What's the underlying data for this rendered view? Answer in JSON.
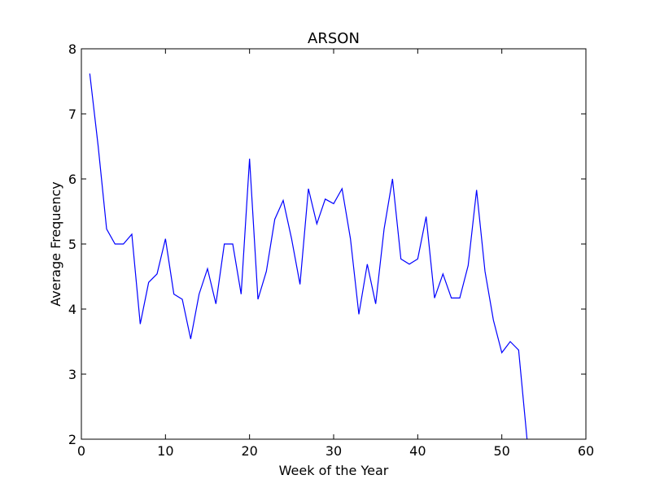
{
  "chart_data": {
    "type": "line",
    "title": "ARSON",
    "xlabel": "Week of the Year",
    "ylabel": "Average Frequency",
    "xlim": [
      0,
      60
    ],
    "ylim": [
      2,
      8
    ],
    "xticks": [
      0,
      10,
      20,
      30,
      40,
      50,
      60
    ],
    "yticks": [
      2,
      3,
      4,
      5,
      6,
      7,
      8
    ],
    "grid": false,
    "line_color": "#0000ff",
    "series": [
      {
        "x": [
          1,
          2,
          3,
          4,
          5,
          6,
          7,
          8,
          9,
          10,
          11,
          12,
          13,
          14,
          15,
          16,
          17,
          18,
          19,
          20,
          21,
          22,
          23,
          24,
          25,
          26,
          27,
          28,
          29,
          30,
          31,
          32,
          33,
          34,
          35,
          36,
          37,
          38,
          39,
          40,
          41,
          42,
          43,
          44,
          45,
          46,
          47,
          48,
          49,
          50,
          51,
          52,
          53
        ],
        "y": [
          7.62,
          6.5,
          5.23,
          5.0,
          5.0,
          5.15,
          3.77,
          4.41,
          4.54,
          5.08,
          4.23,
          4.15,
          3.54,
          4.23,
          4.62,
          4.08,
          5.0,
          5.0,
          4.23,
          6.31,
          4.15,
          4.58,
          5.38,
          5.67,
          5.08,
          4.38,
          5.85,
          5.31,
          5.69,
          5.62,
          5.85,
          5.08,
          3.92,
          4.69,
          4.08,
          5.23,
          6.0,
          4.77,
          4.69,
          4.77,
          5.42,
          4.17,
          4.54,
          4.17,
          4.17,
          4.67,
          5.83,
          4.58,
          3.83,
          3.33,
          3.5,
          3.37,
          2.0
        ]
      }
    ]
  }
}
